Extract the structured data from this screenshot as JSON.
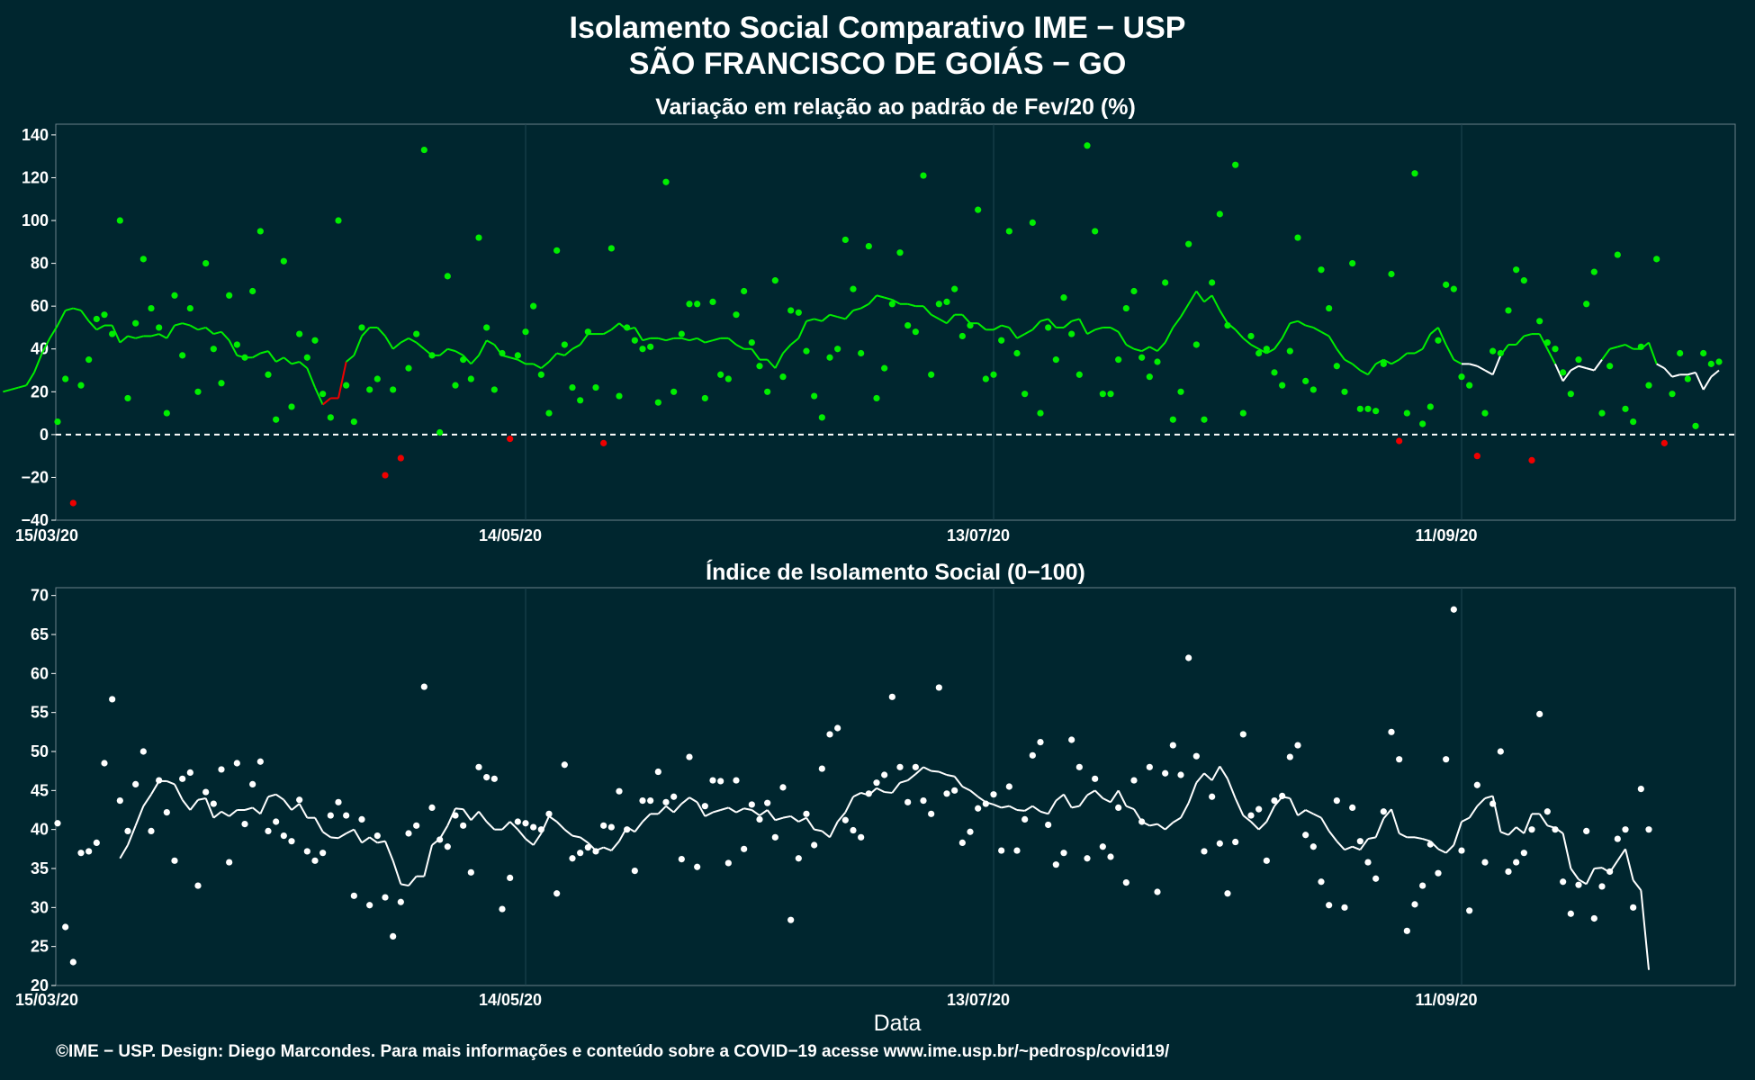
{
  "title_line1": "Isolamento Social Comparativo IME − USP",
  "title_line2": "SÃO FRANCISCO DE GOIÁS − GO",
  "footer": "©IME − USP. Design: Diego Marcondes. Para mais informações e conteúdo sobre a COVID−19 acesse www.ime.usp.br/~pedrosp/covid19/",
  "colors": {
    "background": "#00262f",
    "positive": "#00ee00",
    "negative": "#ee0000",
    "index": "#ffffff"
  },
  "chart_data": [
    {
      "type": "scatter",
      "title": "Variação em relação ao padrão de Fev/20 (%)",
      "xlabel": "",
      "ylabel": "",
      "x_start": "15/03/20",
      "x_tick_labels": [
        "15/03/20",
        "14/05/20",
        "13/07/20",
        "11/09/20"
      ],
      "x_tick_day_offsets": [
        0,
        60,
        120,
        180
      ],
      "ylim": [
        -40,
        145
      ],
      "y_ticks": [
        -40,
        -20,
        0,
        20,
        40,
        60,
        80,
        100,
        120,
        140
      ],
      "reference_line": 0,
      "series": [
        {
          "type": "scatter",
          "values": [
            6,
            26,
            -32,
            23,
            35,
            54,
            56,
            47,
            100,
            17,
            52,
            82,
            59,
            50,
            10,
            65,
            37,
            59,
            20,
            80,
            40,
            24,
            65,
            42,
            36,
            67,
            95,
            28,
            7,
            81,
            13,
            47,
            36,
            44,
            19,
            8,
            100,
            23,
            6,
            50,
            21,
            26,
            -19,
            21,
            -11,
            31,
            47,
            133,
            37,
            1,
            74,
            23,
            35,
            26,
            92,
            50,
            21,
            38,
            -2,
            37,
            48,
            60,
            28,
            10,
            86,
            42,
            22,
            16,
            48,
            22,
            -4,
            87,
            18,
            50,
            44,
            40,
            41,
            15,
            118,
            20,
            47,
            61,
            61,
            17,
            62,
            28,
            26,
            56,
            67,
            43,
            32,
            20,
            72,
            27,
            58,
            57,
            39,
            18,
            8,
            36,
            40,
            91,
            68,
            38,
            88,
            17,
            31,
            61,
            85,
            51,
            48,
            121,
            28,
            61,
            62,
            68,
            46,
            51,
            105,
            26,
            28,
            44,
            95,
            38,
            19,
            99,
            10,
            50,
            35,
            64,
            47,
            28,
            135,
            95,
            19,
            19,
            35,
            59,
            67,
            36,
            27,
            34,
            71,
            7,
            20,
            89,
            42,
            7,
            71,
            103,
            51,
            126,
            10,
            46,
            38,
            40,
            29,
            23,
            39,
            92,
            25,
            21,
            77,
            59,
            32,
            20,
            80,
            12,
            12,
            11,
            33,
            75,
            -3,
            10,
            122,
            5,
            13,
            44,
            70,
            68,
            27,
            23,
            -10,
            10,
            39,
            38,
            58,
            77,
            72,
            -12,
            53,
            43,
            40,
            29,
            19,
            35,
            61,
            76,
            10,
            32,
            84,
            12,
            6,
            41,
            23,
            82,
            -4,
            19,
            38,
            26,
            4,
            38,
            33,
            34
          ]
        },
        {
          "type": "line",
          "name": "",
          "values": [
            20,
            21,
            22,
            23,
            29,
            38,
            45,
            51,
            58,
            59,
            58,
            53,
            49,
            51,
            51,
            43,
            46,
            45,
            46,
            46,
            47,
            45,
            51,
            52,
            51,
            49,
            50,
            47,
            48,
            44,
            37,
            36,
            36,
            38,
            39,
            34,
            36,
            33,
            34,
            31,
            22,
            14,
            17,
            17,
            34,
            37,
            46,
            50,
            50,
            46,
            40,
            43,
            45,
            43,
            40,
            37,
            37,
            40,
            39,
            37,
            33,
            37,
            44,
            42,
            37,
            36,
            35,
            33,
            33,
            31,
            34,
            38,
            37,
            40,
            42,
            47,
            47,
            47,
            49,
            52,
            49,
            50,
            44,
            45,
            45,
            44,
            45,
            45,
            44,
            45,
            43,
            44,
            45,
            45,
            42,
            40,
            40,
            35,
            35,
            31,
            38,
            42,
            45,
            53,
            54,
            53,
            56,
            55,
            54,
            58,
            59,
            61,
            65,
            64,
            63,
            61,
            61,
            60,
            60,
            56,
            54,
            52,
            56,
            56,
            52,
            52,
            49,
            49,
            51,
            50,
            45,
            47,
            49,
            53,
            54,
            50,
            50,
            53,
            54,
            47,
            49,
            50,
            50,
            48,
            42,
            40,
            39,
            41,
            39,
            43,
            50,
            55,
            61,
            67,
            62,
            65,
            58,
            52,
            49,
            45,
            42,
            40,
            38,
            40,
            45,
            52,
            53,
            51,
            50,
            48,
            46,
            40,
            35,
            33,
            30,
            28,
            33,
            35,
            33,
            35,
            38,
            38,
            40,
            47,
            50,
            42,
            35,
            33,
            33,
            32,
            30,
            28,
            37,
            42,
            42,
            46,
            47,
            47,
            40,
            33,
            25,
            30,
            32,
            31,
            30,
            35,
            40,
            41,
            42,
            40,
            40,
            43,
            33,
            31,
            27,
            28,
            28,
            29,
            21,
            27,
            30
          ]
        }
      ]
    },
    {
      "type": "scatter",
      "title": "Índice de Isolamento Social (0−100)",
      "xlabel": "Data",
      "ylabel": "",
      "x_start": "15/03/20",
      "x_tick_labels": [
        "15/03/20",
        "14/05/20",
        "13/07/20",
        "11/09/20"
      ],
      "x_tick_day_offsets": [
        0,
        60,
        120,
        180
      ],
      "ylim": [
        20,
        71
      ],
      "y_ticks": [
        20,
        25,
        30,
        35,
        40,
        45,
        50,
        55,
        60,
        65,
        70
      ],
      "series": [
        {
          "type": "scatter",
          "values": [
            40.8,
            27.5,
            23,
            37,
            37.2,
            38.3,
            48.5,
            56.7,
            43.7,
            39.8,
            45.8,
            50,
            39.8,
            46.3,
            42.2,
            36,
            46.5,
            47.3,
            32.8,
            44.8,
            43.3,
            47.7,
            35.8,
            48.5,
            40.7,
            45.8,
            48.7,
            39.8,
            41,
            39.2,
            38.5,
            43.8,
            37.2,
            36,
            37,
            41.8,
            43.5,
            41.8,
            31.5,
            41.3,
            30.3,
            39.2,
            31.3,
            26.3,
            30.7,
            39.5,
            40.5,
            58.3,
            42.8,
            38.7,
            37.8,
            41.8,
            40.5,
            34.5,
            48,
            46.7,
            46.5,
            29.8,
            33.8,
            41,
            40.8,
            40.3,
            40,
            42,
            31.8,
            48.3,
            36.3,
            37,
            37.7,
            37.2,
            40.5,
            40.3,
            44.9,
            40,
            34.7,
            43.7,
            43.7,
            47.4,
            43.5,
            44.2,
            36.2,
            49.3,
            35.2,
            43,
            46.3,
            46.2,
            35.7,
            46.3,
            37.5,
            43.2,
            41.3,
            43.4,
            39,
            45.4,
            28.4,
            36.3,
            42,
            38,
            47.8,
            52.2,
            53,
            41.2,
            39.9,
            39,
            44.6,
            46,
            47,
            57,
            48,
            43.5,
            48,
            43.7,
            42,
            58.2,
            44.6,
            45,
            38.3,
            39.7,
            42.7,
            43.3,
            44.5,
            37.3,
            45.5,
            37.3,
            41.3,
            49.5,
            51.2,
            40.6,
            35.5,
            37,
            51.5,
            48,
            36.3,
            46.5,
            37.8,
            36.5,
            42.8,
            33.2,
            46.3,
            41,
            48,
            32,
            47.2,
            50.8,
            47,
            62,
            49.4,
            37.2,
            44.2,
            38.2,
            31.8,
            38.4,
            52.2,
            41.8,
            42.6,
            36,
            43.7,
            44.3,
            49.3,
            50.8,
            39.3,
            37.8,
            33.3,
            30.3,
            43.7,
            30,
            42.8,
            38.5,
            35.8,
            33.7,
            42.3,
            52.5,
            49,
            27,
            30.4,
            32.8,
            38.1,
            34.4,
            49,
            68.2,
            37.3,
            29.6,
            45.7,
            35.8,
            43.3,
            50,
            34.6,
            35.8,
            37,
            40,
            54.8,
            42.3,
            40,
            33.3,
            29.2,
            32.9,
            39.8,
            28.6,
            32.7,
            34.6,
            38.8,
            40,
            30,
            45.2,
            40
          ]
        },
        {
          "type": "line",
          "name": "",
          "values": [
            36.3,
            38,
            40.5,
            43,
            44.5,
            46.2,
            46.2,
            45.8,
            43.8,
            42.5,
            43.8,
            44,
            41.5,
            42.3,
            41.7,
            42.5,
            42.5,
            42.8,
            42,
            44.2,
            44.5,
            43.8,
            42.5,
            43.3,
            41.5,
            41.5,
            39.7,
            39,
            38.9,
            39.5,
            40,
            38.3,
            39,
            38.3,
            38.5,
            36,
            33,
            32.8,
            34,
            34,
            38,
            38.8,
            40.5,
            42.7,
            42.6,
            41.2,
            42.3,
            41,
            40,
            40,
            41,
            40,
            38.8,
            38,
            39.5,
            41.7,
            41,
            40,
            39.2,
            39,
            38.3,
            37.3,
            37.7,
            37.3,
            38.5,
            40.3,
            39.7,
            41,
            42,
            42,
            43,
            42.2,
            43.3,
            44.1,
            43.5,
            41.7,
            42.2,
            42.5,
            42.8,
            42.2,
            42.7,
            42.5,
            41.8,
            42.5,
            41.2,
            41.5,
            41.7,
            41,
            41.5,
            40,
            39.8,
            39,
            41,
            42.2,
            44.2,
            44.7,
            44.4,
            45.3,
            44.8,
            44.7,
            46,
            46.3,
            47.1,
            48,
            47.5,
            47.4,
            47,
            46.8,
            45.5,
            45,
            44.2,
            43.5,
            43.2,
            42.8,
            43,
            42.5,
            42.4,
            43,
            42.3,
            42,
            43.7,
            44.5,
            42.8,
            43,
            44.4,
            45,
            44,
            43.5,
            45,
            43,
            42.6,
            41,
            40.5,
            40.7,
            40,
            40.9,
            41.5,
            43.4,
            46,
            47.2,
            46.3,
            48.1,
            46.5,
            44,
            41.8,
            41,
            40,
            41,
            43,
            44.2,
            44,
            41.8,
            42.5,
            42,
            41.5,
            39.8,
            38.5,
            37.4,
            37.8,
            37.4,
            38.8,
            39,
            41.4,
            42.6,
            39.5,
            39,
            39,
            38.8,
            38.5,
            37.5,
            37,
            38,
            41,
            41.5,
            43,
            44,
            44.3,
            39.7,
            39.3,
            40.3,
            39.5,
            42,
            42,
            40.5,
            40.2,
            39.5,
            35,
            33.6,
            33,
            35,
            35.1,
            34.5,
            36,
            37.5,
            33.5,
            32.2,
            22
          ]
        }
      ]
    }
  ]
}
